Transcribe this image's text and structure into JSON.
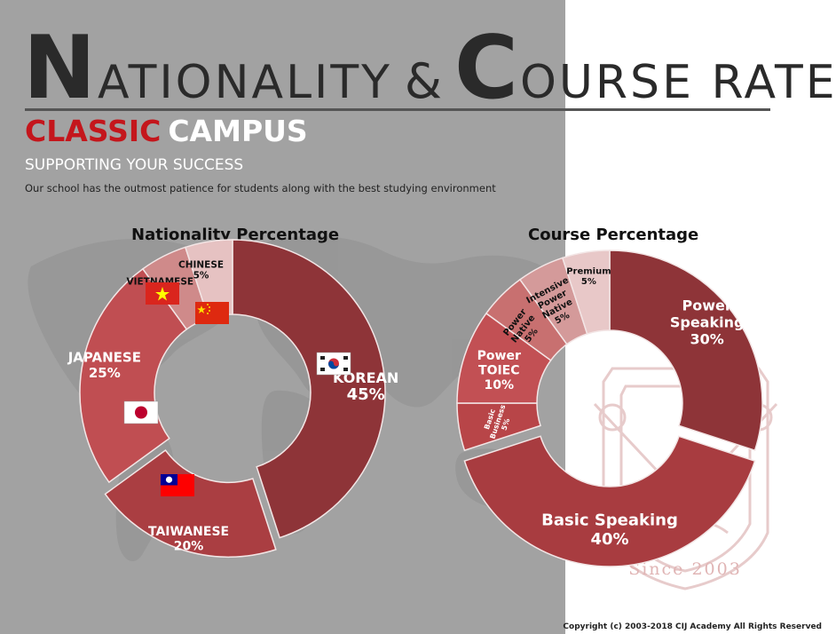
{
  "header": {
    "title_initial_1": "N",
    "title_rest_1": "ATIONALITY",
    "title_amp": "&",
    "title_initial_2": "C",
    "title_rest_2": "OURSE RATE",
    "classic": "CLASSIC",
    "campus": "CAMPUS",
    "tagline": "SUPPORTING YOUR SUCCESS",
    "description": "Our school has the outmost patience for students along with the best studying environment"
  },
  "watermark": {
    "since_text": "Since 2003"
  },
  "footer": {
    "copyright": "Copyright (c) 2003-2018 CIJ Academy All Rights Reserved"
  },
  "colors": {
    "background_gray": "#a2a2a2",
    "title_red": "#c4161c",
    "maroon": "#8e3438",
    "mid_red": "#b84548",
    "light_pink": "#d8a6a6",
    "pale_pink": "#ecd2d2"
  },
  "chart_data": [
    {
      "type": "pie",
      "style": "donut",
      "title": "Nationality Percentage",
      "slices": [
        {
          "label": "KOREAN",
          "value": 45,
          "value_label": "45%",
          "color": "#8e3438",
          "icon": "south-korea-flag"
        },
        {
          "label": "TAIWANESE",
          "value": 20,
          "value_label": "20%",
          "color": "#aa3e42",
          "icon": "taiwan-flag",
          "exploded": true
        },
        {
          "label": "JAPANESE",
          "value": 25,
          "value_label": "25%",
          "color": "#c04e52",
          "icon": "japan-flag"
        },
        {
          "label": "VIETNAMESE",
          "value": 5,
          "value_label": "5%",
          "color": "#cf8a8a",
          "icon": "vietnam-flag"
        },
        {
          "label": "CHINESE",
          "value": 5,
          "value_label": "5%",
          "color": "#e6c2c2",
          "icon": "china-flag"
        }
      ]
    },
    {
      "type": "pie",
      "style": "donut",
      "title": "Course Percentage",
      "slices": [
        {
          "label": "Power Speaking",
          "value": 30,
          "value_label": "30%",
          "color": "#8e3438"
        },
        {
          "label": "Basic Speaking",
          "value": 40,
          "value_label": "40%",
          "color": "#a83c40",
          "exploded": true
        },
        {
          "label": "Basic Business",
          "value": 5,
          "value_label": "5%",
          "color": "#b84548"
        },
        {
          "label": "Power TOIEC",
          "value": 10,
          "value_label": "10%",
          "color": "#c25054"
        },
        {
          "label": "Power Native",
          "value": 5,
          "value_label": "5%",
          "color": "#c87070"
        },
        {
          "label": "Intensive Power Native",
          "value": 5,
          "value_label": "5%",
          "color": "#d49a9a"
        },
        {
          "label": "Premium",
          "value": 5,
          "value_label": "5%",
          "color": "#e8c8c8"
        }
      ]
    }
  ]
}
